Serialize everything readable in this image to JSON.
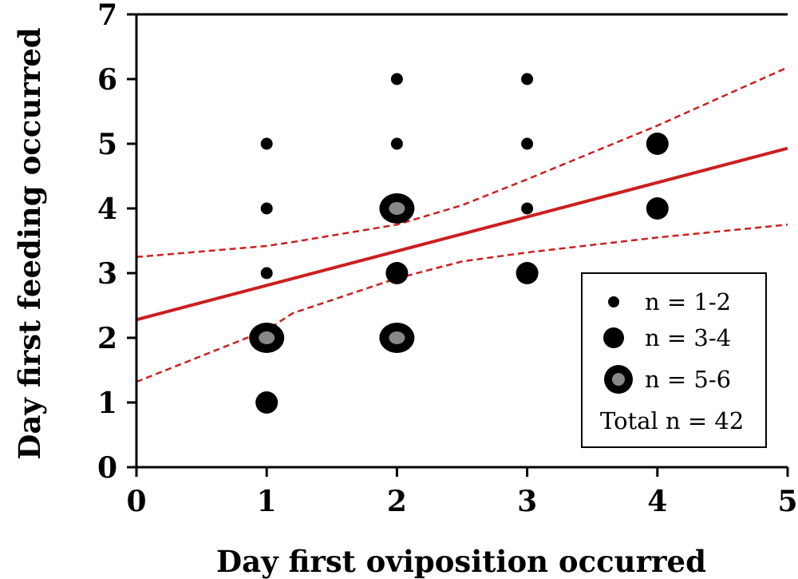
{
  "chart_data": {
    "type": "scatter",
    "xlabel": "Day first oviposition occurred",
    "ylabel": "Day first feeding occurred",
    "xlim": [
      0,
      5
    ],
    "ylim": [
      0,
      7
    ],
    "x_ticks": [
      "0",
      "1",
      "2",
      "3",
      "4",
      "5"
    ],
    "y_ticks": [
      "0",
      "1",
      "2",
      "3",
      "4",
      "5",
      "6",
      "7"
    ],
    "grid": false,
    "size_classes": [
      {
        "key": "small",
        "label": "n = 1-2"
      },
      {
        "key": "medium",
        "label": "n = 3-4"
      },
      {
        "key": "large",
        "label": "n = 5-6"
      }
    ],
    "points": [
      {
        "x": 1,
        "y": 1,
        "size": "medium"
      },
      {
        "x": 1,
        "y": 2,
        "size": "large"
      },
      {
        "x": 1,
        "y": 3,
        "size": "small"
      },
      {
        "x": 1,
        "y": 4,
        "size": "small"
      },
      {
        "x": 1,
        "y": 5,
        "size": "small"
      },
      {
        "x": 2,
        "y": 2,
        "size": "large"
      },
      {
        "x": 2,
        "y": 3,
        "size": "medium"
      },
      {
        "x": 2,
        "y": 4,
        "size": "large"
      },
      {
        "x": 2,
        "y": 5,
        "size": "small"
      },
      {
        "x": 2,
        "y": 6,
        "size": "small"
      },
      {
        "x": 3,
        "y": 3,
        "size": "medium"
      },
      {
        "x": 3,
        "y": 4,
        "size": "small"
      },
      {
        "x": 3,
        "y": 5,
        "size": "small"
      },
      {
        "x": 3,
        "y": 6,
        "size": "small"
      },
      {
        "x": 4,
        "y": 4,
        "size": "medium"
      },
      {
        "x": 4,
        "y": 5,
        "size": "medium"
      }
    ],
    "regression": {
      "x": [
        0,
        5
      ],
      "y": [
        2.28,
        4.93
      ]
    },
    "ci_upper": {
      "x": [
        0,
        1,
        1.2,
        2,
        2.5,
        3,
        4,
        5
      ],
      "y": [
        3.25,
        3.42,
        3.48,
        3.75,
        4.05,
        4.45,
        5.28,
        6.18
      ]
    },
    "ci_lower": {
      "x": [
        0,
        1,
        1.2,
        2,
        2.5,
        3,
        4,
        5
      ],
      "y": [
        1.32,
        2.12,
        2.38,
        2.92,
        3.18,
        3.32,
        3.55,
        3.75
      ]
    },
    "legend": {
      "position": "bottom-right",
      "total_label": "Total n = 42"
    },
    "colors": {
      "points": "#000000",
      "large_fill": "#888888",
      "regression": "#cc1f1f"
    }
  }
}
